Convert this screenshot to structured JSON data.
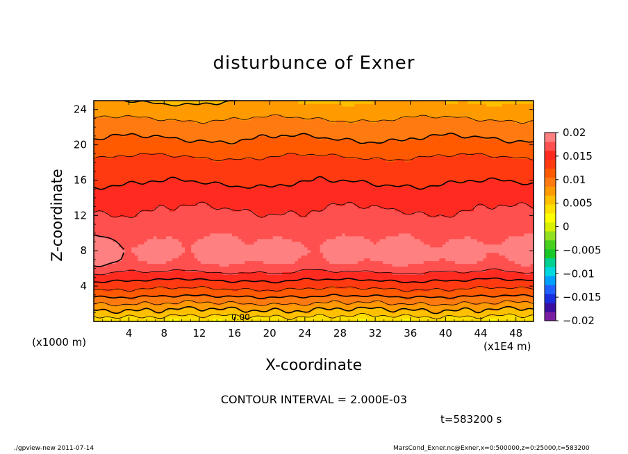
{
  "chart_data": {
    "type": "heatmap",
    "title": "disturbunce of Exner",
    "xlabel": "X-coordinate",
    "ylabel": "Z-coordinate",
    "x_unit_left": "(x1000 m)",
    "x_unit_right": "(x1E4 m)",
    "xlim": [
      0,
      50
    ],
    "ylim": [
      0,
      25
    ],
    "x_ticks": [
      "4",
      "8",
      "12",
      "16",
      "20",
      "24",
      "28",
      "32",
      "36",
      "40",
      "44",
      "48"
    ],
    "y_ticks": [
      "4",
      "8",
      "12",
      "16",
      "20",
      "24"
    ],
    "x_tick_values": [
      4,
      8,
      12,
      16,
      20,
      24,
      28,
      32,
      36,
      40,
      44,
      48
    ],
    "y_tick_values": [
      4,
      8,
      12,
      16,
      20,
      24
    ],
    "colorbar_labels": [
      "0.02",
      "0.015",
      "0.01",
      "0.005",
      "0",
      "−0.005",
      "−0.01",
      "−0.015",
      "−0.02"
    ],
    "colorbar_values": [
      0.02,
      0.015,
      0.01,
      0.005,
      0,
      -0.005,
      -0.01,
      -0.015,
      -0.02
    ],
    "clim": [
      -0.02,
      0.02
    ],
    "contour_interval_text": "CONTOUR INTERVAL = 2.000E-03",
    "contour_label": "0.00",
    "time_text": "t=583200 s",
    "level_colors": [
      "#7a1fa2",
      "#3a0fa0",
      "#1a2ee0",
      "#2060ff",
      "#00a0ff",
      "#00d8e0",
      "#00d090",
      "#18c828",
      "#48d020",
      "#90e020",
      "#d8f000",
      "#ffff00",
      "#ffe000",
      "#ffc000",
      "#ff9a00",
      "#ff7a10",
      "#ff5a00",
      "#ff3a10",
      "#ff2a20",
      "#ff5050",
      "#ff8080"
    ],
    "profile": [
      {
        "z": 0.0,
        "v": 0.003
      },
      {
        "z": 0.5,
        "v": 0.0045
      },
      {
        "z": 1.0,
        "v": 0.006
      },
      {
        "z": 1.5,
        "v": 0.007
      },
      {
        "z": 2.0,
        "v": 0.0085
      },
      {
        "z": 2.5,
        "v": 0.0095
      },
      {
        "z": 3.0,
        "v": 0.011
      },
      {
        "z": 4.0,
        "v": 0.013
      },
      {
        "z": 5.0,
        "v": 0.015
      },
      {
        "z": 6.0,
        "v": 0.017
      },
      {
        "z": 7.0,
        "v": 0.0185
      },
      {
        "z": 8.0,
        "v": 0.019
      },
      {
        "z": 9.0,
        "v": 0.0185
      },
      {
        "z": 10.0,
        "v": 0.0175
      },
      {
        "z": 12.0,
        "v": 0.0165
      },
      {
        "z": 14.0,
        "v": 0.0155
      },
      {
        "z": 16.0,
        "v": 0.014
      },
      {
        "z": 18.0,
        "v": 0.013
      },
      {
        "z": 20.0,
        "v": 0.011
      },
      {
        "z": 22.0,
        "v": 0.0095
      },
      {
        "z": 24.0,
        "v": 0.0075
      },
      {
        "z": 25.0,
        "v": 0.0065
      }
    ]
  },
  "footer": {
    "left": "./gpview-new   2011-07-14",
    "right": "MarsCond_Exner.nc@Exner,x=0:500000,z=0:25000,t=583200"
  }
}
